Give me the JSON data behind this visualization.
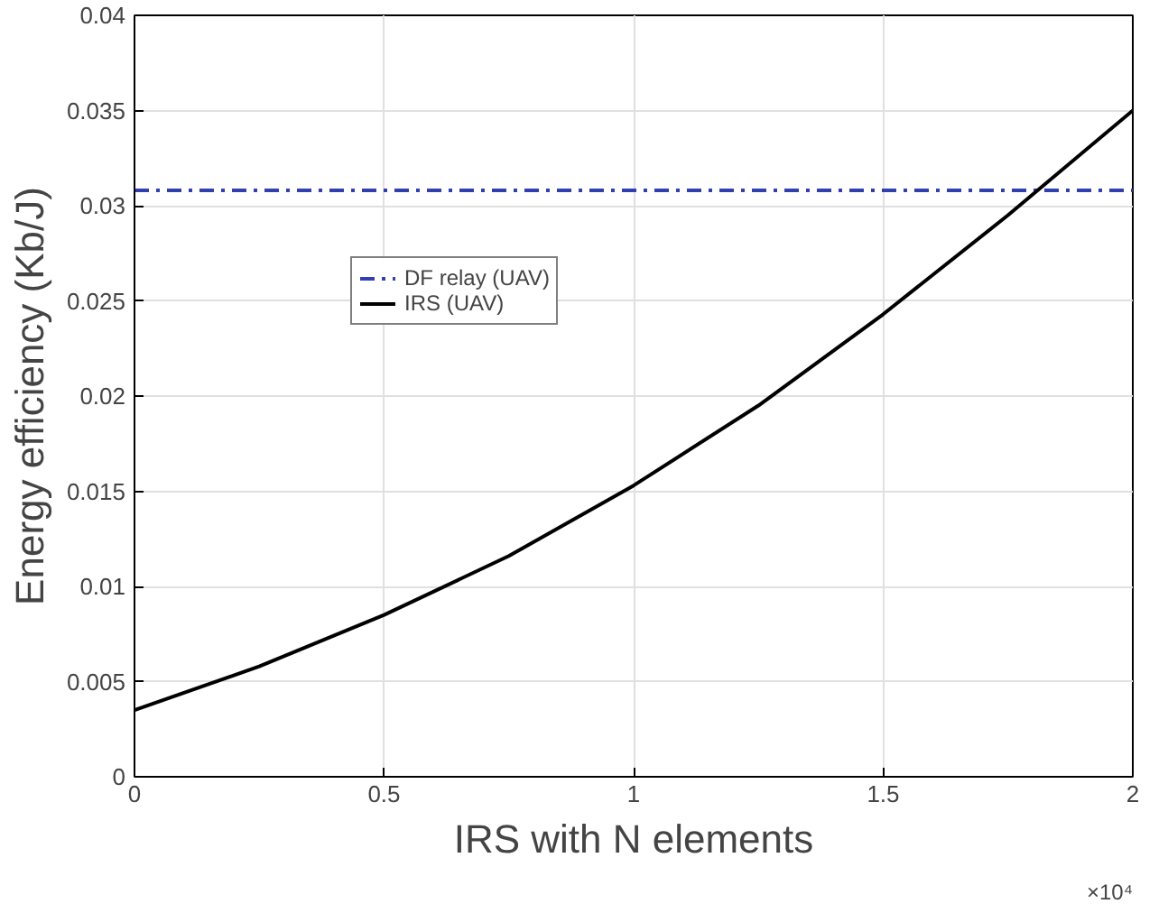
{
  "chart_data": {
    "type": "line",
    "xlabel": "IRS with N elements",
    "ylabel": "Energy efficiency (Kb/J)",
    "annotations": [
      "×10⁴"
    ],
    "xlim": [
      0,
      2
    ],
    "xticks": [
      0,
      0.5,
      1,
      1.5,
      2
    ],
    "ylim": [
      0,
      0.04
    ],
    "yticks": [
      0,
      0.005,
      0.01,
      0.015,
      0.02,
      0.025,
      0.03,
      0.035,
      0.04
    ],
    "grid": true,
    "legend": "left",
    "series": [
      {
        "name": "DF relay (UAV)",
        "color": "#3040b0",
        "line_style": "dashed",
        "x": [
          0,
          2
        ],
        "values": [
          0.0308,
          0.0308
        ]
      },
      {
        "name": "IRS (UAV)",
        "color": "#000000",
        "line_style": "solid",
        "x": [
          0,
          0.25,
          0.5,
          0.75,
          1,
          1.25,
          1.5,
          1.75,
          2
        ],
        "values": [
          0.0035,
          0.0058,
          0.0085,
          0.0116,
          0.0153,
          0.0195,
          0.0243,
          0.0295,
          0.035
        ]
      }
    ]
  }
}
